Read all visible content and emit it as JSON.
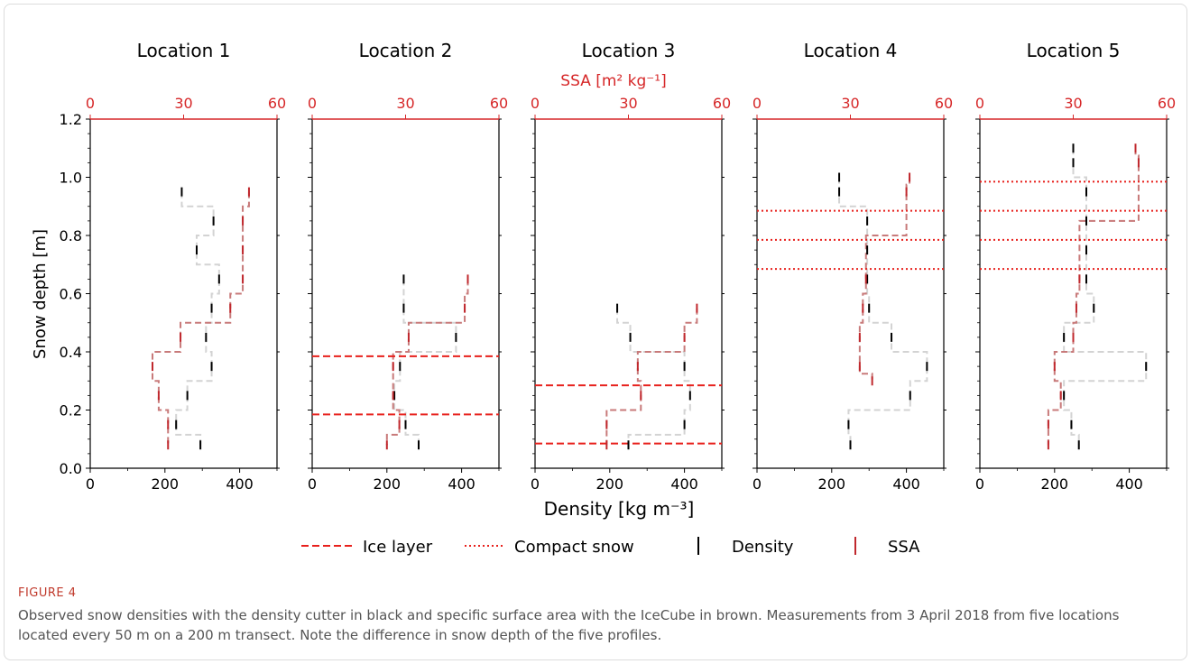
{
  "figure": {
    "label": "FIGURE 4",
    "caption": "Observed snow densities with the density cutter in black and specific surface area with the IceCube in brown. Measurements from 3 April 2018 from five locations located every 50 m on a 200 m transect. Note the difference in snow depth of the five profiles."
  },
  "colors": {
    "density": "#000000",
    "density_line": "#d3d3d3",
    "ssa": "#c0282d",
    "ssa_line": "#c87a7a",
    "ice_layer": "#e8201c",
    "compact_snow": "#e8201c",
    "ssa_axis": "#d62728"
  },
  "chart_data": {
    "type": "line",
    "shared_ylabel": "Snow depth [m]",
    "shared_xlabel": "Density [kg $m^{-3}$]",
    "shared_xlabel_display": "Density [kg m⁻³]",
    "ssa_axis_label": "SSA [m² kg⁻¹]",
    "ylim": [
      0.0,
      1.2
    ],
    "yticks": [
      "0.0",
      "0.2",
      "0.4",
      "0.6",
      "0.8",
      "1.0",
      "1.2"
    ],
    "density_xlim": [
      0,
      500
    ],
    "density_xticks": [
      "0",
      "200",
      "400"
    ],
    "ssa_xlim": [
      0,
      60
    ],
    "ssa_xticks": [
      "0",
      "30",
      "60"
    ],
    "legend": {
      "placement": "bottom-center",
      "entries": [
        {
          "label": "Ice layer",
          "style": "dashed"
        },
        {
          "label": "Compact snow",
          "style": "dotted"
        },
        {
          "label": "Density",
          "style": "black-tick"
        },
        {
          "label": "SSA",
          "style": "red-tick"
        }
      ]
    },
    "panels": [
      {
        "title": "Location 1",
        "density": [
          [
            0.95,
            245
          ],
          [
            0.85,
            330
          ],
          [
            0.75,
            285
          ],
          [
            0.65,
            345
          ],
          [
            0.55,
            325
          ],
          [
            0.45,
            310
          ],
          [
            0.35,
            325
          ],
          [
            0.25,
            260
          ],
          [
            0.15,
            230
          ],
          [
            0.08,
            295
          ]
        ],
        "ssa": [
          [
            0.95,
            51
          ],
          [
            0.85,
            49
          ],
          [
            0.75,
            49
          ],
          [
            0.65,
            49
          ],
          [
            0.55,
            45
          ],
          [
            0.45,
            29
          ],
          [
            0.35,
            20
          ],
          [
            0.25,
            22
          ],
          [
            0.15,
            25
          ],
          [
            0.08,
            25
          ]
        ],
        "ice_layers": [],
        "compact_snow": []
      },
      {
        "title": "Location 2",
        "density": [
          [
            0.65,
            245
          ],
          [
            0.55,
            245
          ],
          [
            0.45,
            385
          ],
          [
            0.35,
            235
          ],
          [
            0.25,
            220
          ],
          [
            0.15,
            250
          ],
          [
            0.08,
            285
          ]
        ],
        "ssa": [
          [
            0.65,
            50
          ],
          [
            0.55,
            49
          ],
          [
            0.45,
            31
          ],
          [
            0.35,
            26
          ],
          [
            0.25,
            26
          ],
          [
            0.15,
            28
          ],
          [
            0.08,
            24
          ]
        ],
        "ice_layers": [
          0.385,
          0.185
        ],
        "compact_snow": []
      },
      {
        "title": "Location 3",
        "density": [
          [
            0.55,
            220
          ],
          [
            0.45,
            255
          ],
          [
            0.35,
            400
          ],
          [
            0.25,
            415
          ],
          [
            0.15,
            400
          ],
          [
            0.08,
            250
          ]
        ],
        "ssa": [
          [
            0.55,
            52
          ],
          [
            0.45,
            48
          ],
          [
            0.35,
            33
          ],
          [
            0.25,
            34
          ],
          [
            0.15,
            23
          ],
          [
            0.08,
            23
          ]
        ],
        "ice_layers": [
          0.285,
          0.085
        ],
        "compact_snow": []
      },
      {
        "title": "Location 4",
        "density": [
          [
            1.0,
            220
          ],
          [
            0.95,
            220
          ],
          [
            0.85,
            295
          ],
          [
            0.75,
            295
          ],
          [
            0.65,
            295
          ],
          [
            0.55,
            300
          ],
          [
            0.45,
            360
          ],
          [
            0.35,
            455
          ],
          [
            0.25,
            410
          ],
          [
            0.15,
            245
          ],
          [
            0.08,
            250
          ]
        ],
        "ssa": [
          [
            1.0,
            49
          ],
          [
            0.95,
            48
          ],
          [
            0.65,
            35
          ],
          [
            0.55,
            34
          ],
          [
            0.45,
            33
          ],
          [
            0.35,
            33
          ],
          [
            0.3,
            37
          ]
        ],
        "ice_layers": [],
        "compact_snow": [
          0.885,
          0.785,
          0.685
        ]
      },
      {
        "title": "Location 5",
        "density": [
          [
            1.1,
            250
          ],
          [
            1.05,
            250
          ],
          [
            0.95,
            285
          ],
          [
            0.85,
            285
          ],
          [
            0.75,
            285
          ],
          [
            0.65,
            285
          ],
          [
            0.55,
            305
          ],
          [
            0.45,
            225
          ],
          [
            0.35,
            445
          ],
          [
            0.25,
            225
          ],
          [
            0.15,
            245
          ],
          [
            0.08,
            265
          ]
        ],
        "ssa": [
          [
            1.1,
            50
          ],
          [
            1.05,
            51
          ],
          [
            0.65,
            32
          ],
          [
            0.55,
            31
          ],
          [
            0.45,
            30
          ],
          [
            0.35,
            24
          ],
          [
            0.25,
            26
          ],
          [
            0.15,
            22
          ],
          [
            0.08,
            22
          ]
        ],
        "ice_layers": [],
        "compact_snow": [
          0.985,
          0.885,
          0.785,
          0.685
        ]
      }
    ]
  }
}
